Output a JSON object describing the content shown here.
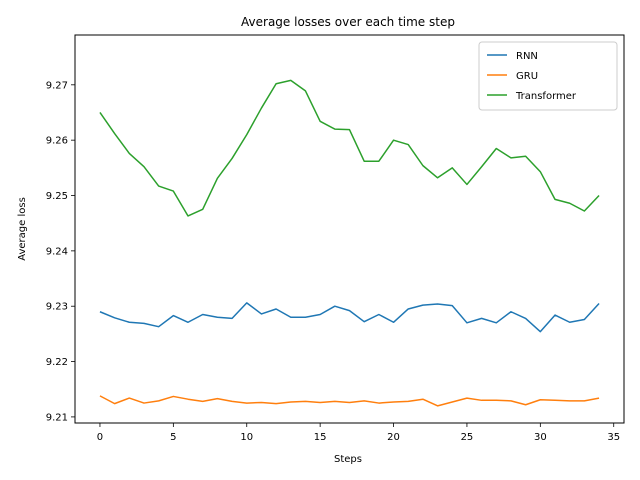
{
  "chart_data": {
    "type": "line",
    "title": "Average losses over each time step",
    "xlabel": "Steps",
    "ylabel": "Average loss",
    "xlim": [
      -1.7,
      35.7
    ],
    "ylim": [
      9.2089,
      9.279
    ],
    "xticks": [
      0,
      5,
      10,
      15,
      20,
      25,
      30,
      35
    ],
    "xtick_labels": [
      "0",
      "5",
      "10",
      "15",
      "20",
      "25",
      "30",
      "35"
    ],
    "yticks": [
      9.21,
      9.22,
      9.23,
      9.24,
      9.25,
      9.26,
      9.27
    ],
    "ytick_labels": [
      "9.21",
      "9.22",
      "9.23",
      "9.24",
      "9.25",
      "9.26",
      "9.27"
    ],
    "grid": false,
    "legend_position": "top-right",
    "x": [
      0,
      1,
      2,
      3,
      4,
      5,
      6,
      7,
      8,
      9,
      10,
      11,
      12,
      13,
      14,
      15,
      16,
      17,
      18,
      19,
      20,
      21,
      22,
      23,
      24,
      25,
      26,
      27,
      28,
      29,
      30,
      31,
      32,
      33,
      34
    ],
    "series": [
      {
        "name": "RNN",
        "color": "#1f77b4",
        "values": [
          9.229,
          9.2279,
          9.2271,
          9.2269,
          9.2263,
          9.2283,
          9.2271,
          9.2285,
          9.228,
          9.2278,
          9.2306,
          9.2286,
          9.2295,
          9.228,
          9.228,
          9.2285,
          9.23,
          9.2292,
          9.2272,
          9.2285,
          9.2271,
          9.2295,
          9.2302,
          9.2304,
          9.2301,
          9.227,
          9.2278,
          9.227,
          9.229,
          9.2278,
          9.2254,
          9.2284,
          9.2271,
          9.2276,
          9.2305
        ]
      },
      {
        "name": "GRU",
        "color": "#ff7f0e",
        "values": [
          9.2138,
          9.2124,
          9.2134,
          9.2125,
          9.2129,
          9.2137,
          9.2132,
          9.2128,
          9.2133,
          9.2128,
          9.2125,
          9.2126,
          9.2124,
          9.2127,
          9.2128,
          9.2126,
          9.2128,
          9.2126,
          9.2129,
          9.2125,
          9.2127,
          9.2128,
          9.2132,
          9.212,
          9.2127,
          9.2134,
          9.213,
          9.213,
          9.2129,
          9.2122,
          9.2131,
          9.213,
          9.2129,
          9.2129,
          9.2134
        ]
      },
      {
        "name": "Transformer",
        "color": "#2ca02c",
        "values": [
          9.265,
          9.2612,
          9.2576,
          9.2552,
          9.2517,
          9.2508,
          9.2463,
          9.2475,
          9.2531,
          9.2567,
          9.261,
          9.2658,
          9.2702,
          9.2708,
          9.2689,
          9.2634,
          9.262,
          9.2619,
          9.2562,
          9.2562,
          9.26,
          9.2592,
          9.2554,
          9.2532,
          9.255,
          9.252,
          9.2552,
          9.2585,
          9.2568,
          9.2571,
          9.2543,
          9.2493,
          9.2486,
          9.2472,
          9.25
        ]
      }
    ]
  }
}
